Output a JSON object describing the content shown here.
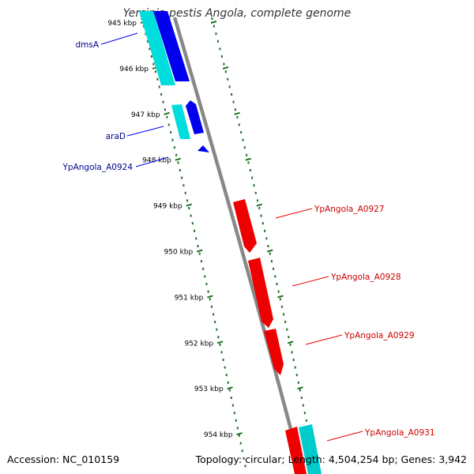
{
  "title": "Yersinia pestis Angola, complete genome",
  "footer": {
    "accession": "Accession: NC_010159",
    "summary": "Topology: circular; Length: 4,504,254 bp; Genes: 3,942"
  },
  "colors": {
    "forward_cds": "#0000ee",
    "forward_other": "#00dddd",
    "reverse_cds": "#ee0000",
    "reverse_other": "#00cccc",
    "backbone": "#888888",
    "tick": "#207020",
    "forward_label": "#00008b",
    "reverse_label": "#cc0000"
  },
  "ticks": [
    "945 kbp",
    "946 kbp",
    "947 kbp",
    "948 kbp",
    "949 kbp",
    "950 kbp",
    "951 kbp",
    "952 kbp",
    "953 kbp",
    "954 kbp"
  ],
  "forward_labels": [
    "dmsA",
    "araD",
    "YpAngola_A0924"
  ],
  "reverse_labels": [
    "YpAngola_A0927",
    "YpAngola_A0928",
    "YpAngola_A0929",
    "YpAngola_A0931"
  ]
}
